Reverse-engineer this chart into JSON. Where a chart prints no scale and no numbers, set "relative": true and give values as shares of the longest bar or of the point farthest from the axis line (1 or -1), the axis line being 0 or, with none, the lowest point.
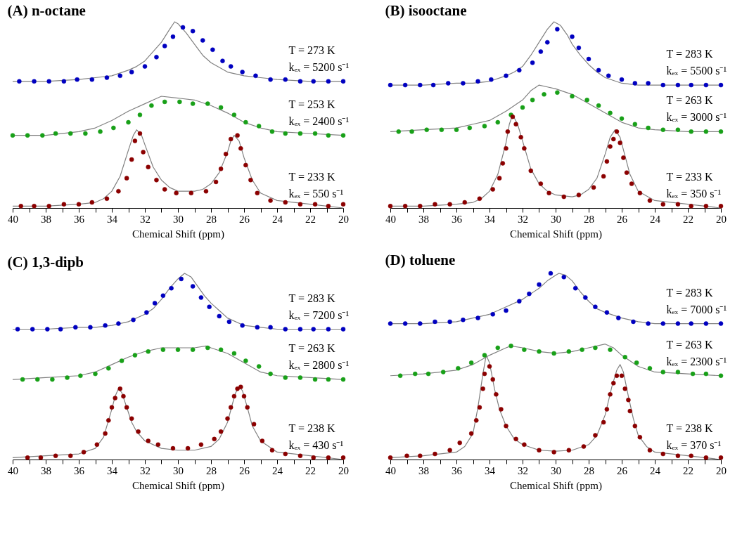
{
  "chart_data": [
    {
      "type": "line",
      "title": "(A) n-octane",
      "xlabel": "Chemical Shift (ppm)",
      "xlim": [
        40,
        20
      ],
      "relative": true,
      "xticks": [
        40,
        {
          "value": 39,
          "label": null
        },
        38,
        {
          "value": 37,
          "label": null
        },
        36,
        {
          "value": 35,
          "label": null
        },
        34,
        {
          "value": 33,
          "label": null
        },
        32,
        {
          "value": 31,
          "label": null
        },
        30,
        {
          "value": 29,
          "label": null
        },
        28,
        {
          "value": 27,
          "label": null
        },
        26,
        {
          "value": 25,
          "label": null
        },
        24,
        {
          "value": 23,
          "label": null
        },
        22,
        {
          "value": 21,
          "label": null
        },
        20
      ],
      "annotations": [
        "T = 273 K",
        "kₑₓ = 5200 s⁻¹",
        "T = 253 K",
        "kₑₓ = 2400 s⁻¹",
        "T = 233 K",
        "kₑₓ = 550 s⁻¹"
      ],
      "series": [
        {
          "color": "#808080",
          "x": [
            40,
            38,
            36,
            35,
            34,
            33,
            32.5,
            32,
            31.5,
            31,
            30.5,
            30.2,
            30,
            29.5,
            29,
            28.5,
            28,
            27,
            26,
            25,
            24,
            22,
            20
          ],
          "values": [
            0.68,
            0.68,
            0.69,
            0.7,
            0.71,
            0.74,
            0.76,
            0.79,
            0.84,
            0.89,
            0.96,
            1.0,
            0.99,
            0.94,
            0.88,
            0.82,
            0.78,
            0.73,
            0.71,
            0.7,
            0.69,
            0.68,
            0.68
          ]
        },
        {
          "color": "#808080",
          "x": [
            40,
            38,
            36,
            35,
            34,
            33,
            32,
            31.5,
            31,
            30,
            29,
            28,
            27,
            26,
            25,
            24,
            22,
            20
          ],
          "values": [
            0.39,
            0.39,
            0.41,
            0.43,
            0.47,
            0.52,
            0.56,
            0.58,
            0.6,
            0.59,
            0.58,
            0.55,
            0.51,
            0.46,
            0.43,
            0.41,
            0.4,
            0.39
          ]
        },
        {
          "color": "#808080",
          "x": [
            40,
            38,
            36,
            35,
            34.5,
            34,
            33.5,
            33,
            32.7,
            32.5,
            32.2,
            32,
            31.5,
            31,
            30.5,
            30,
            29,
            28.5,
            28,
            27.5,
            27,
            26.8,
            26.6,
            26.3,
            26,
            25.5,
            25,
            24,
            22,
            20
          ],
          "values": [
            0.01,
            0.01,
            0.02,
            0.03,
            0.05,
            0.09,
            0.17,
            0.31,
            0.39,
            0.42,
            0.39,
            0.34,
            0.22,
            0.15,
            0.11,
            0.09,
            0.09,
            0.1,
            0.13,
            0.19,
            0.3,
            0.36,
            0.39,
            0.36,
            0.27,
            0.15,
            0.08,
            0.04,
            0.02,
            0.0
          ]
        },
        {
          "type": "scatter",
          "marker": "circle",
          "color": "#0000c0",
          "x": [
            39.6,
            38.7,
            37.8,
            36.9,
            36.1,
            35.2,
            34.3,
            33.5,
            32.8,
            32,
            31.3,
            30.8,
            30.3,
            29.7,
            29.1,
            28.5,
            27.9,
            27.3,
            26.8,
            26.1,
            25.3,
            24.4,
            23.5,
            22.6,
            21.8,
            20.9,
            20
          ],
          "values": [
            0.68,
            0.68,
            0.68,
            0.68,
            0.69,
            0.69,
            0.7,
            0.71,
            0.73,
            0.76,
            0.81,
            0.87,
            0.92,
            0.97,
            0.95,
            0.9,
            0.85,
            0.79,
            0.76,
            0.73,
            0.71,
            0.69,
            0.69,
            0.68,
            0.68,
            0.68,
            0.68
          ]
        },
        {
          "type": "scatter",
          "marker": "circle",
          "color": "#18a018",
          "x": [
            40,
            39.1,
            38.2,
            37.4,
            36.5,
            35.6,
            34.7,
            33.9,
            33,
            32.3,
            31.6,
            30.8,
            29.9,
            29.1,
            28.2,
            27.4,
            26.6,
            25.9,
            25.1,
            24.3,
            23.5,
            22.6,
            21.7,
            20.9,
            20
          ],
          "values": [
            0.39,
            0.39,
            0.39,
            0.4,
            0.4,
            0.4,
            0.41,
            0.43,
            0.46,
            0.5,
            0.55,
            0.57,
            0.57,
            0.56,
            0.56,
            0.54,
            0.5,
            0.46,
            0.44,
            0.41,
            0.4,
            0.4,
            0.4,
            0.39,
            0.39
          ]
        },
        {
          "type": "scatter",
          "marker": "circle",
          "color": "#8b0000",
          "x": [
            39.5,
            38.7,
            37.8,
            36.9,
            36,
            35.2,
            34.3,
            33.6,
            33.1,
            32.8,
            32.6,
            32.3,
            32.1,
            31.8,
            31.3,
            30.8,
            30.1,
            29.2,
            28.3,
            27.7,
            27.4,
            27.1,
            26.8,
            26.4,
            26.2,
            25.9,
            25.6,
            25.2,
            24.4,
            23.5,
            22.6,
            21.7,
            20.9,
            20
          ],
          "values": [
            0.01,
            0.01,
            0.01,
            0.02,
            0.02,
            0.03,
            0.05,
            0.09,
            0.16,
            0.26,
            0.36,
            0.4,
            0.3,
            0.22,
            0.15,
            0.1,
            0.08,
            0.08,
            0.09,
            0.14,
            0.21,
            0.29,
            0.37,
            0.39,
            0.32,
            0.23,
            0.15,
            0.08,
            0.04,
            0.03,
            0.02,
            0.02,
            0.01,
            0.02
          ]
        }
      ]
    },
    {
      "type": "line",
      "title": "(B) isooctane",
      "xlabel": "Chemical Shift (ppm)",
      "xlim": [
        40,
        20
      ],
      "relative": true,
      "xticks": [
        40,
        {
          "value": 39,
          "label": null
        },
        38,
        {
          "value": 37,
          "label": null
        },
        36,
        {
          "value": 35,
          "label": null
        },
        34,
        {
          "value": 33,
          "label": null
        },
        32,
        {
          "value": 31,
          "label": null
        },
        30,
        {
          "value": 29,
          "label": null
        },
        28,
        {
          "value": 27,
          "label": null
        },
        26,
        {
          "value": 25,
          "label": null
        },
        24,
        {
          "value": 23,
          "label": null
        },
        22,
        {
          "value": 21,
          "label": null
        },
        20
      ],
      "annotations": [
        "T = 283 K",
        "kₑₓ = 5500 s⁻¹",
        "T = 263 K",
        "kₑₓ = 3000 s⁻¹",
        "T = 233 K",
        "kₑₓ = 350 s⁻¹"
      ],
      "series": [
        {
          "color": "#808080",
          "x": [
            40,
            38,
            36,
            35,
            34,
            33,
            32.5,
            32,
            31.5,
            31,
            30.5,
            30.1,
            29.7,
            29.3,
            29,
            28.5,
            28,
            27.5,
            27,
            26,
            25,
            24,
            22,
            20
          ],
          "values": [
            0.66,
            0.66,
            0.67,
            0.67,
            0.68,
            0.71,
            0.73,
            0.76,
            0.82,
            0.89,
            0.96,
            1.0,
            0.98,
            0.93,
            0.88,
            0.82,
            0.77,
            0.73,
            0.7,
            0.67,
            0.66,
            0.66,
            0.66,
            0.66
          ]
        },
        {
          "color": "#808080",
          "x": [
            40,
            38,
            36,
            35,
            34,
            33,
            32,
            31.5,
            31,
            30.5,
            30,
            29,
            28,
            27,
            26,
            25,
            24,
            22,
            20
          ],
          "values": [
            0.41,
            0.42,
            0.43,
            0.45,
            0.47,
            0.52,
            0.58,
            0.63,
            0.66,
            0.65,
            0.64,
            0.61,
            0.56,
            0.51,
            0.46,
            0.43,
            0.42,
            0.41,
            0.41
          ]
        },
        {
          "color": "#808080",
          "x": [
            40,
            38,
            36,
            35,
            34.5,
            34,
            33.5,
            33,
            32.8,
            32.6,
            32.3,
            32,
            31.5,
            31,
            30.5,
            30,
            29,
            28.5,
            28,
            27.5,
            27,
            26.7,
            26.4,
            26.1,
            25.8,
            25.5,
            25,
            24,
            22,
            20
          ],
          "values": [
            0.01,
            0.01,
            0.02,
            0.03,
            0.05,
            0.09,
            0.18,
            0.35,
            0.45,
            0.5,
            0.45,
            0.36,
            0.21,
            0.13,
            0.09,
            0.07,
            0.06,
            0.07,
            0.1,
            0.16,
            0.29,
            0.38,
            0.42,
            0.38,
            0.28,
            0.18,
            0.09,
            0.04,
            0.02,
            0.0
          ]
        },
        {
          "type": "scatter",
          "marker": "circle",
          "color": "#0000c0",
          "x": [
            40,
            39.1,
            38.2,
            37.4,
            36.5,
            35.6,
            34.7,
            33.9,
            33,
            32.2,
            31.4,
            30.9,
            30.5,
            29.9,
            29.0,
            28.6,
            28.0,
            27.4,
            26.8,
            26.0,
            25.2,
            24.4,
            23.5,
            22.6,
            21.8,
            20.9,
            20
          ],
          "values": [
            0.66,
            0.66,
            0.66,
            0.66,
            0.67,
            0.67,
            0.68,
            0.69,
            0.71,
            0.74,
            0.78,
            0.84,
            0.89,
            0.96,
            0.92,
            0.86,
            0.8,
            0.74,
            0.71,
            0.69,
            0.67,
            0.67,
            0.66,
            0.66,
            0.66,
            0.66,
            0.66
          ]
        },
        {
          "type": "scatter",
          "marker": "circle",
          "color": "#18a018",
          "x": [
            39.5,
            38.7,
            37.8,
            36.9,
            36,
            35.2,
            34.3,
            33.5,
            32.7,
            32,
            31.4,
            30.7,
            29.9,
            29,
            28.1,
            27.4,
            26.7,
            26,
            25.2,
            24.4,
            23.5,
            22.6,
            21.8,
            20.9,
            20
          ],
          "values": [
            0.41,
            0.41,
            0.42,
            0.42,
            0.42,
            0.43,
            0.44,
            0.46,
            0.5,
            0.54,
            0.58,
            0.61,
            0.62,
            0.6,
            0.58,
            0.55,
            0.51,
            0.48,
            0.45,
            0.43,
            0.42,
            0.42,
            0.41,
            0.41,
            0.41
          ]
        },
        {
          "type": "scatter",
          "marker": "circle",
          "color": "#8b0000",
          "x": [
            40,
            39.1,
            38.2,
            37.3,
            36.4,
            35.5,
            34.6,
            33.8,
            33.4,
            33.2,
            33,
            32.9,
            32.6,
            32.4,
            32.1,
            31.9,
            31.5,
            30.9,
            30.4,
            29.5,
            28.6,
            27.7,
            27.1,
            26.9,
            26.7,
            26.5,
            26.3,
            26.1,
            25.9,
            25.7,
            25.4,
            24.9,
            24.3,
            23.5,
            22.6,
            21.8,
            20.9,
            20
          ],
          "values": [
            0.01,
            0.01,
            0.01,
            0.02,
            0.02,
            0.03,
            0.05,
            0.1,
            0.16,
            0.24,
            0.32,
            0.41,
            0.49,
            0.45,
            0.38,
            0.32,
            0.2,
            0.13,
            0.08,
            0.06,
            0.07,
            0.11,
            0.17,
            0.25,
            0.33,
            0.37,
            0.41,
            0.35,
            0.27,
            0.19,
            0.13,
            0.08,
            0.04,
            0.02,
            0.02,
            0.01,
            0.01,
            0.01
          ]
        }
      ]
    },
    {
      "type": "line",
      "title": "(C) 1,3-dipb",
      "xlabel": "Chemical Shift (ppm)",
      "xlim": [
        40,
        20
      ],
      "relative": true,
      "xticks": [
        40,
        {
          "value": 39,
          "label": null
        },
        38,
        {
          "value": 37,
          "label": null
        },
        36,
        {
          "value": 35,
          "label": null
        },
        34,
        {
          "value": 33,
          "label": null
        },
        32,
        {
          "value": 31,
          "label": null
        },
        30,
        {
          "value": 29,
          "label": null
        },
        28,
        {
          "value": 27,
          "label": null
        },
        26,
        {
          "value": 25,
          "label": null
        },
        24,
        {
          "value": 23,
          "label": null
        },
        22,
        {
          "value": 21,
          "label": null
        },
        20
      ],
      "annotations": [
        "T = 283 K",
        "kₑₓ = 7200 s⁻¹",
        "T = 263 K",
        "kₑₓ = 2800 s⁻¹",
        "T = 238 K",
        "kₑₓ = 430 s⁻¹"
      ],
      "series": [
        {
          "color": "#808080",
          "x": [
            40,
            38,
            36,
            35,
            34,
            33,
            32,
            31.5,
            31,
            30.5,
            30,
            29.6,
            29.2,
            28.8,
            28.4,
            28,
            27.5,
            27,
            26,
            25,
            24,
            22,
            20
          ],
          "values": [
            0.7,
            0.7,
            0.71,
            0.71,
            0.72,
            0.74,
            0.78,
            0.81,
            0.86,
            0.92,
            0.97,
            1.0,
            0.98,
            0.93,
            0.88,
            0.84,
            0.8,
            0.76,
            0.72,
            0.71,
            0.7,
            0.7,
            0.7
          ]
        },
        {
          "color": "#808080",
          "x": [
            40,
            38,
            36,
            35,
            34,
            33,
            32,
            31,
            30,
            29,
            28.3,
            28,
            27,
            26,
            25,
            24,
            22,
            20
          ],
          "values": [
            0.43,
            0.44,
            0.45,
            0.47,
            0.51,
            0.55,
            0.58,
            0.6,
            0.6,
            0.6,
            0.61,
            0.6,
            0.57,
            0.52,
            0.47,
            0.45,
            0.44,
            0.43
          ]
        },
        {
          "color": "#808080",
          "x": [
            40,
            38,
            36,
            35,
            34.5,
            34,
            33.8,
            33.6,
            33.4,
            33.1,
            32.8,
            32.5,
            32,
            31,
            30,
            29,
            28,
            27.5,
            27,
            26.7,
            26.5,
            26.3,
            26.1,
            25.8,
            25.5,
            25,
            24,
            22,
            20
          ],
          "values": [
            0.01,
            0.02,
            0.03,
            0.06,
            0.12,
            0.27,
            0.34,
            0.38,
            0.36,
            0.28,
            0.2,
            0.15,
            0.1,
            0.06,
            0.05,
            0.05,
            0.07,
            0.11,
            0.2,
            0.3,
            0.36,
            0.39,
            0.37,
            0.28,
            0.18,
            0.1,
            0.04,
            0.02,
            0.0
          ]
        },
        {
          "type": "scatter",
          "marker": "circle",
          "color": "#0000c0",
          "x": [
            39.7,
            38.8,
            37.9,
            37.1,
            36.2,
            35.3,
            34.4,
            33.6,
            32.7,
            31.9,
            31.4,
            30.9,
            30.4,
            29.8,
            29.1,
            28.6,
            28.1,
            27.5,
            26.9,
            26.1,
            25.2,
            24.4,
            23.5,
            22.6,
            21.8,
            20.9,
            20
          ],
          "values": [
            0.7,
            0.7,
            0.7,
            0.7,
            0.71,
            0.71,
            0.72,
            0.73,
            0.75,
            0.79,
            0.84,
            0.88,
            0.92,
            0.97,
            0.93,
            0.87,
            0.82,
            0.77,
            0.74,
            0.72,
            0.71,
            0.71,
            0.7,
            0.7,
            0.7,
            0.7,
            0.7
          ]
        },
        {
          "type": "scatter",
          "marker": "circle",
          "color": "#18a018",
          "x": [
            39.4,
            38.5,
            37.6,
            36.7,
            35.9,
            35,
            34.2,
            33.4,
            32.6,
            31.8,
            30.9,
            30,
            29.1,
            28.2,
            27.4,
            26.6,
            25.9,
            25.1,
            24.4,
            23.5,
            22.6,
            21.7,
            20.9,
            20
          ],
          "values": [
            0.43,
            0.43,
            0.43,
            0.44,
            0.45,
            0.46,
            0.49,
            0.53,
            0.56,
            0.58,
            0.59,
            0.59,
            0.59,
            0.6,
            0.59,
            0.57,
            0.53,
            0.5,
            0.46,
            0.44,
            0.44,
            0.43,
            0.43,
            0.43
          ]
        },
        {
          "type": "scatter",
          "marker": "circle",
          "color": "#8b0000",
          "x": [
            39.1,
            38.3,
            37.4,
            36.5,
            35.7,
            34.9,
            34.4,
            34.2,
            34,
            33.8,
            33.5,
            33.3,
            33.1,
            32.8,
            32.4,
            31.8,
            31.2,
            30.3,
            29.4,
            28.6,
            27.8,
            27.4,
            27,
            26.8,
            26.6,
            26.4,
            26.2,
            26,
            25.8,
            25.4,
            24.9,
            24.3,
            23.5,
            22.6,
            21.8,
            20.9,
            20
          ],
          "values": [
            0.01,
            0.01,
            0.02,
            0.02,
            0.04,
            0.08,
            0.14,
            0.21,
            0.28,
            0.33,
            0.38,
            0.34,
            0.28,
            0.22,
            0.15,
            0.1,
            0.08,
            0.06,
            0.06,
            0.08,
            0.11,
            0.15,
            0.22,
            0.28,
            0.34,
            0.38,
            0.39,
            0.34,
            0.28,
            0.19,
            0.1,
            0.05,
            0.03,
            0.02,
            0.01,
            0.01,
            0.01
          ]
        }
      ]
    },
    {
      "type": "line",
      "title": "(D) toluene",
      "xlabel": "Chemical Shift (ppm)",
      "xlim": [
        40,
        20
      ],
      "relative": true,
      "xticks": [
        40,
        {
          "value": 39,
          "label": null
        },
        38,
        {
          "value": 37,
          "label": null
        },
        36,
        {
          "value": 35,
          "label": null
        },
        34,
        {
          "value": 33,
          "label": null
        },
        32,
        {
          "value": 31,
          "label": null
        },
        30,
        {
          "value": 29,
          "label": null
        },
        28,
        {
          "value": 27,
          "label": null
        },
        26,
        {
          "value": 25,
          "label": null
        },
        24,
        {
          "value": 23,
          "label": null
        },
        22,
        {
          "value": 21,
          "label": null
        },
        20
      ],
      "annotations": [
        "T = 283 K",
        "kₑₓ = 7000 s⁻¹",
        "T = 263 K",
        "kₑₓ = 2300 s⁻¹",
        "T = 238 K",
        "kₑₓ = 370 s⁻¹"
      ],
      "series": [
        {
          "color": "#808080",
          "x": [
            40,
            38,
            36,
            35,
            34,
            33,
            32,
            31,
            30.5,
            30,
            29.8,
            29.4,
            29,
            28.5,
            28,
            27.5,
            27,
            26,
            25,
            24,
            22,
            20
          ],
          "values": [
            0.73,
            0.73,
            0.74,
            0.76,
            0.78,
            0.82,
            0.86,
            0.92,
            0.96,
            0.99,
            1.0,
            0.99,
            0.96,
            0.9,
            0.85,
            0.81,
            0.79,
            0.76,
            0.74,
            0.73,
            0.73,
            0.73
          ]
        },
        {
          "color": "#808080",
          "x": [
            40,
            38,
            36,
            35,
            34,
            33,
            32.7,
            32,
            31,
            30,
            29,
            28,
            27,
            26.5,
            26,
            25,
            24,
            22,
            20
          ],
          "values": [
            0.45,
            0.46,
            0.48,
            0.51,
            0.56,
            0.6,
            0.61,
            0.6,
            0.58,
            0.57,
            0.58,
            0.6,
            0.62,
            0.6,
            0.56,
            0.5,
            0.47,
            0.46,
            0.45
          ]
        },
        {
          "color": "#808080",
          "x": [
            40,
            38,
            36,
            35.5,
            35,
            34.7,
            34.4,
            34.2,
            34,
            33.7,
            33.4,
            33,
            32.5,
            32,
            31,
            30,
            29,
            28,
            27.5,
            27,
            26.6,
            26.3,
            26.1,
            25.9,
            25.6,
            25.3,
            25,
            24.5,
            24,
            22,
            20
          ],
          "values": [
            0.01,
            0.02,
            0.04,
            0.07,
            0.14,
            0.28,
            0.46,
            0.56,
            0.52,
            0.38,
            0.27,
            0.18,
            0.11,
            0.08,
            0.05,
            0.045,
            0.05,
            0.08,
            0.13,
            0.24,
            0.39,
            0.48,
            0.51,
            0.47,
            0.34,
            0.22,
            0.13,
            0.07,
            0.04,
            0.02,
            0.0
          ]
        },
        {
          "type": "scatter",
          "marker": "circle",
          "color": "#0000c0",
          "x": [
            40,
            39.1,
            38.2,
            37.3,
            36.4,
            35.6,
            34.7,
            33.8,
            33,
            32.2,
            31.6,
            31,
            30.3,
            29.5,
            28.8,
            28.2,
            27.6,
            26.9,
            26.2,
            25.3,
            24.4,
            23.5,
            22.6,
            21.8,
            20.9,
            20
          ],
          "values": [
            0.73,
            0.73,
            0.73,
            0.74,
            0.74,
            0.75,
            0.76,
            0.78,
            0.8,
            0.85,
            0.89,
            0.94,
            1.0,
            0.98,
            0.92,
            0.87,
            0.82,
            0.79,
            0.76,
            0.74,
            0.73,
            0.73,
            0.73,
            0.73,
            0.73,
            0.73
          ]
        },
        {
          "type": "scatter",
          "marker": "circle",
          "color": "#18a018",
          "x": [
            39.4,
            38.5,
            37.7,
            36.8,
            35.9,
            35.1,
            34.3,
            33.5,
            32.7,
            31.9,
            31,
            30.1,
            29.2,
            28.4,
            27.6,
            26.7,
            25.8,
            25.1,
            24.3,
            23.5,
            22.6,
            21.7,
            20.9,
            20
          ],
          "values": [
            0.45,
            0.46,
            0.46,
            0.47,
            0.49,
            0.52,
            0.56,
            0.6,
            0.61,
            0.59,
            0.58,
            0.57,
            0.58,
            0.59,
            0.6,
            0.59,
            0.55,
            0.52,
            0.49,
            0.47,
            0.47,
            0.46,
            0.46,
            0.45
          ]
        },
        {
          "type": "scatter",
          "marker": "circle",
          "color": "#8b0000",
          "x": [
            40,
            39,
            38.2,
            37.3,
            36.4,
            35.8,
            35.1,
            34.8,
            34.6,
            34.4,
            34.3,
            34,
            33.8,
            33.6,
            33.3,
            33,
            32.4,
            31.9,
            31,
            30.1,
            29.2,
            28.3,
            27.6,
            27.1,
            26.9,
            26.7,
            26.5,
            26.3,
            26,
            25.8,
            25.6,
            25.5,
            25.2,
            24.9,
            24.3,
            23.5,
            22.6,
            21.8,
            20.9,
            20
          ],
          "values": [
            0.01,
            0.02,
            0.02,
            0.03,
            0.05,
            0.09,
            0.14,
            0.21,
            0.28,
            0.38,
            0.46,
            0.5,
            0.43,
            0.35,
            0.27,
            0.18,
            0.11,
            0.08,
            0.05,
            0.04,
            0.05,
            0.07,
            0.13,
            0.2,
            0.27,
            0.35,
            0.41,
            0.45,
            0.45,
            0.38,
            0.32,
            0.26,
            0.18,
            0.12,
            0.05,
            0.03,
            0.02,
            0.02,
            0.01,
            0.01
          ]
        }
      ]
    }
  ]
}
